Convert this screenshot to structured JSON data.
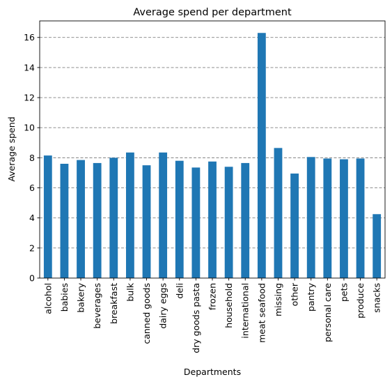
{
  "chart_data": {
    "type": "bar",
    "title": "Average spend per department",
    "xlabel": "Departments",
    "ylabel": "Average spend",
    "ylim": [
      0,
      17.1
    ],
    "yticks": [
      0,
      2,
      4,
      6,
      8,
      10,
      12,
      14,
      16
    ],
    "grid": "y-axis dashed",
    "bar_color": "#1f77b4",
    "categories": [
      "alcohol",
      "babies",
      "bakery",
      "beverages",
      "breakfast",
      "bulk",
      "canned goods",
      "dairy eggs",
      "deli",
      "dry goods pasta",
      "frozen",
      "household",
      "international",
      "meat seafood",
      "missing",
      "other",
      "pantry",
      "personal care",
      "pets",
      "produce",
      "snacks"
    ],
    "values": [
      8.15,
      7.6,
      7.85,
      7.65,
      8.0,
      8.35,
      7.5,
      8.35,
      7.8,
      7.35,
      7.75,
      7.4,
      7.65,
      16.3,
      8.65,
      6.95,
      8.05,
      7.95,
      7.9,
      7.95,
      4.25
    ]
  }
}
